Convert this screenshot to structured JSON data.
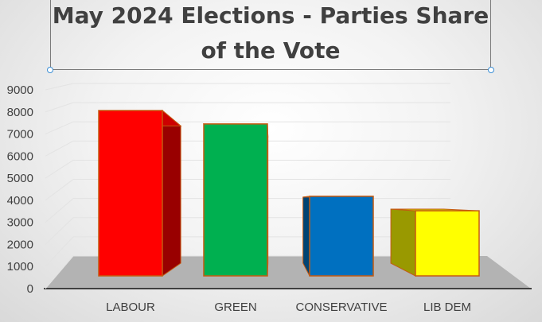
{
  "chart_data": {
    "type": "bar",
    "title": "May 2024 Elections - Parties Share of the Vote",
    "xlabel": "",
    "ylabel": "",
    "categories": [
      "LABOUR",
      "GREEN",
      "CONSERVATIVE",
      "LIB DEM"
    ],
    "values": [
      8000,
      7350,
      3850,
      3150
    ],
    "colors": [
      "#ff0000",
      "#00b050",
      "#0070c0",
      "#ffff00"
    ],
    "ylim": [
      0,
      9000
    ],
    "yticks": [
      "0",
      "1000",
      "2000",
      "3000",
      "4000",
      "5000",
      "6000",
      "7000",
      "8000",
      "9000"
    ],
    "grid": true,
    "legend": "none",
    "style": "3d-perspective",
    "bar_outline_color": "#c55a11"
  }
}
